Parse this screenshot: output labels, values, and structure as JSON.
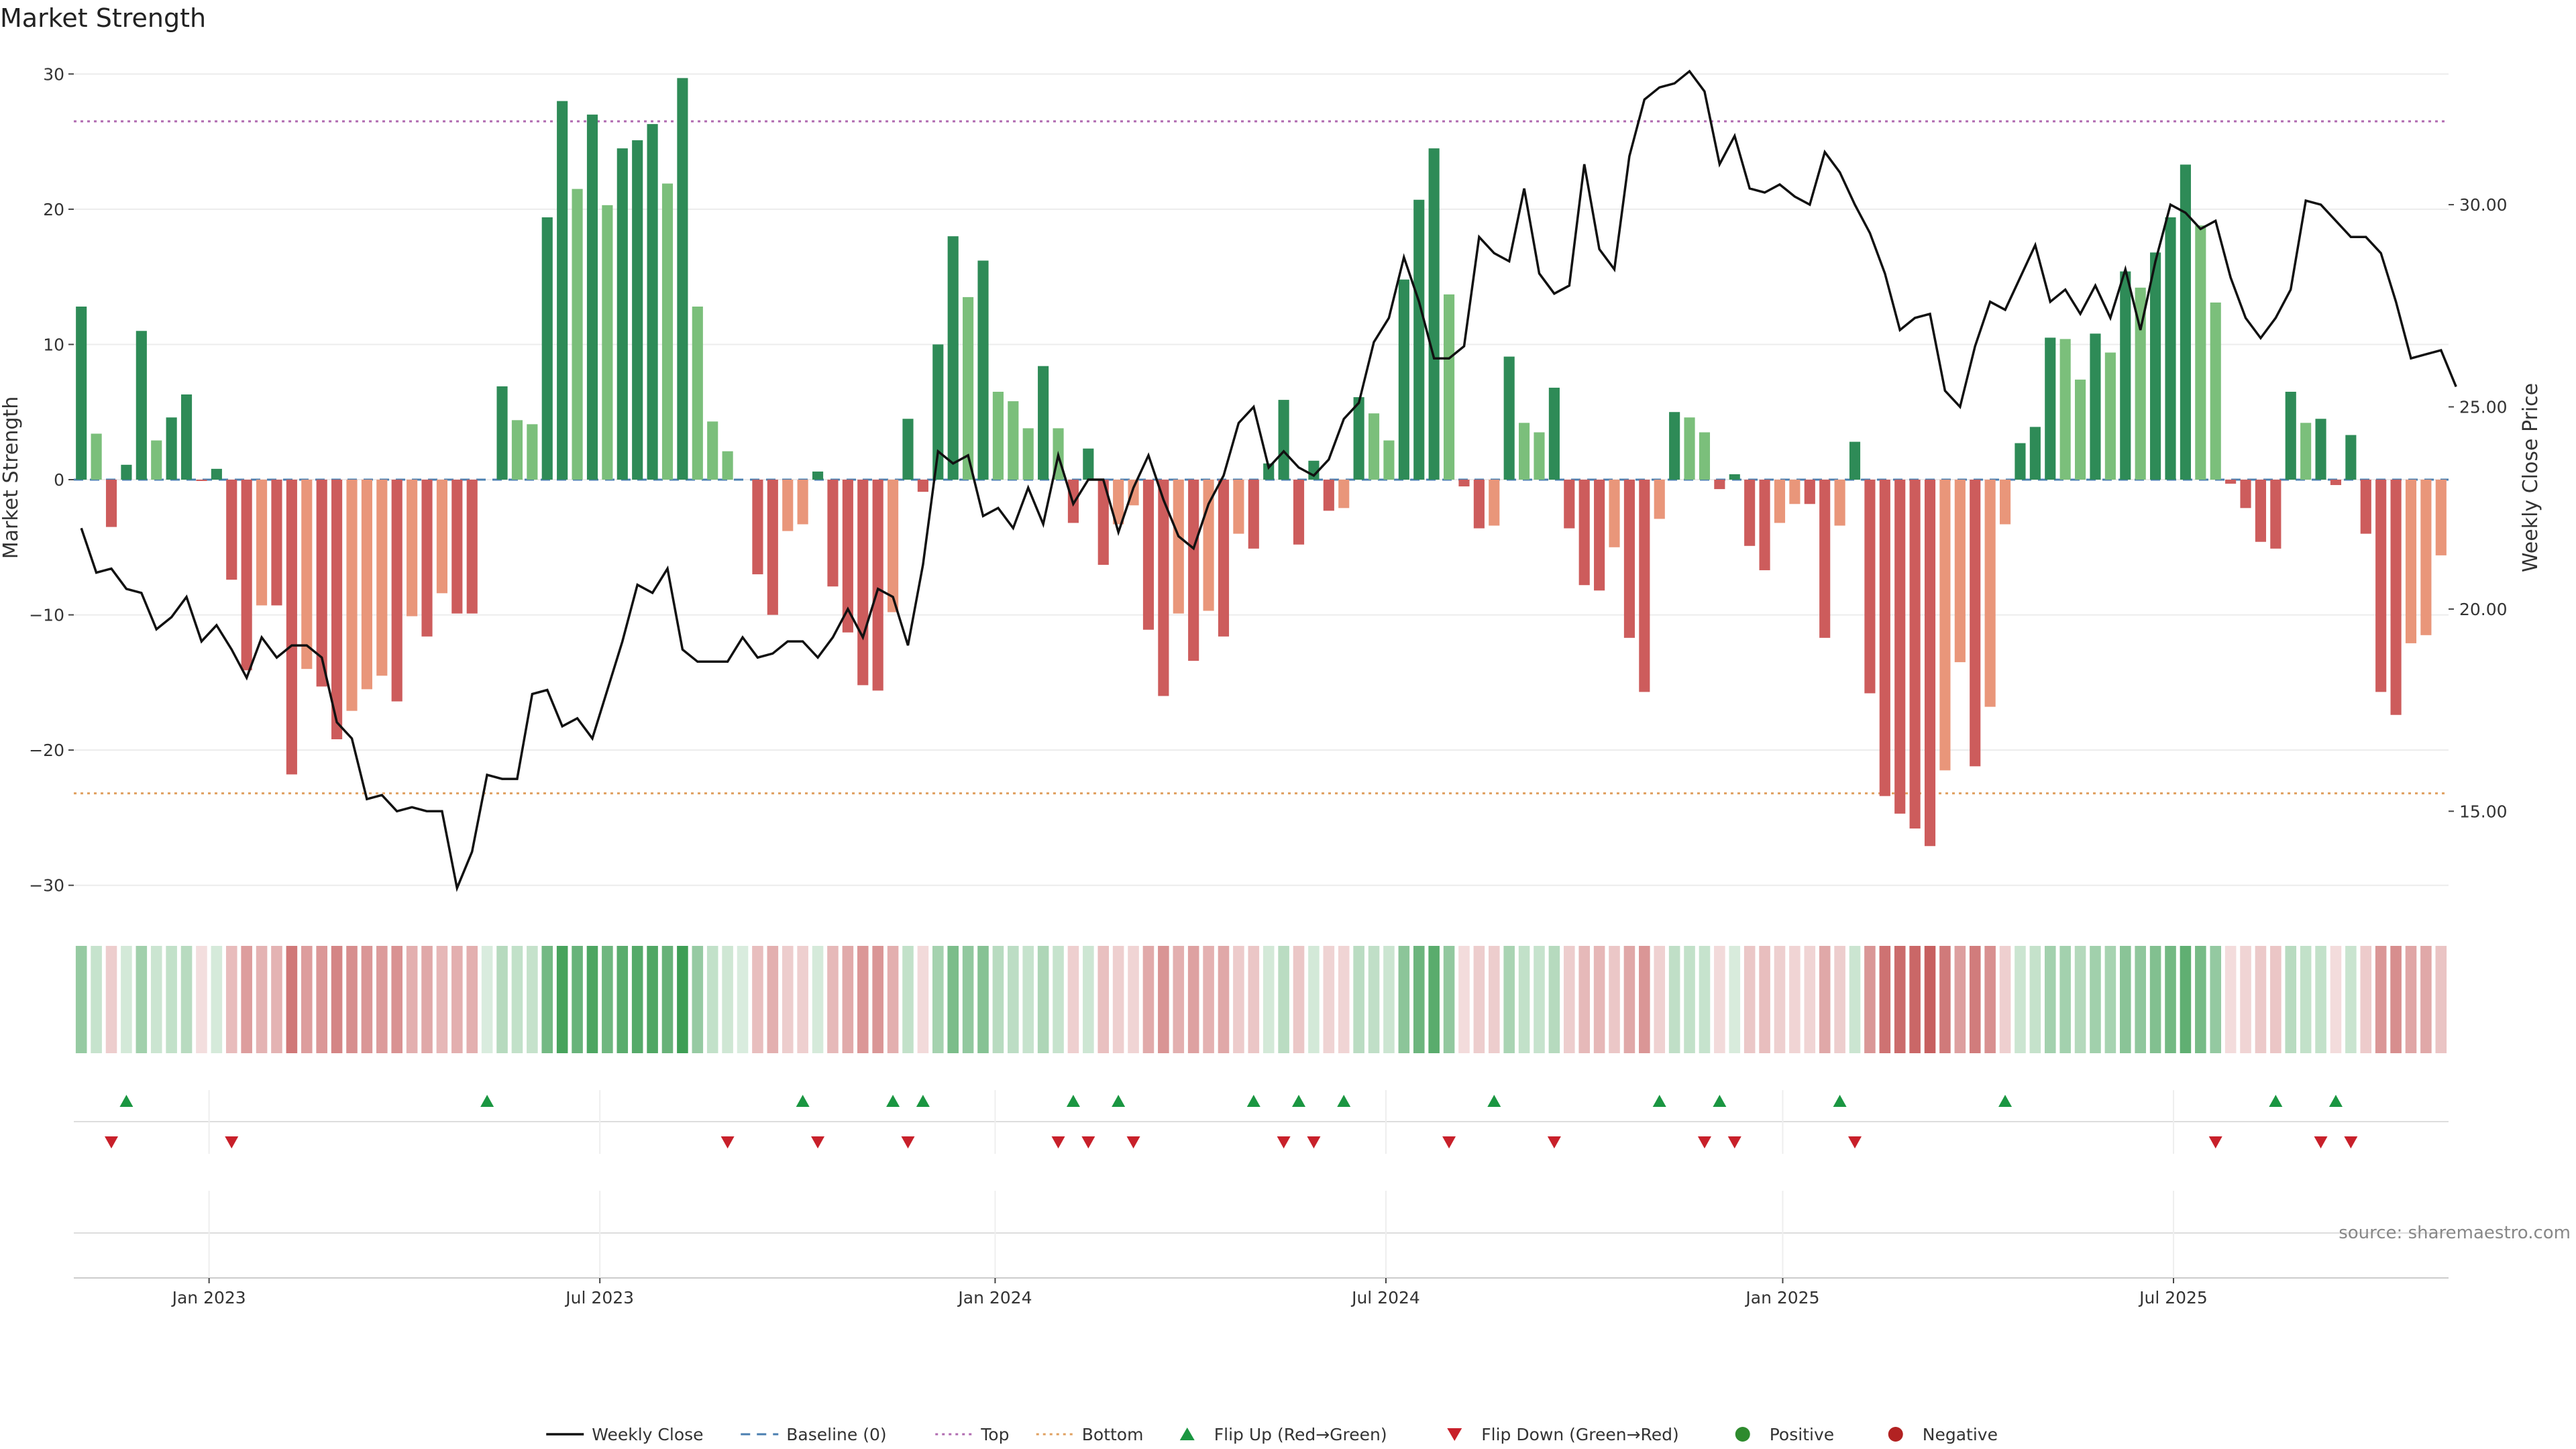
{
  "chart_data": {
    "type": "bar",
    "title": "Market Strength",
    "ylabel_left": "Market Strength",
    "ylabel_right": "Weekly Close Price",
    "source": "source: sharemaestro.com",
    "left_ylim": [
      -32,
      32
    ],
    "left_ticks": [
      "30",
      "20",
      "10",
      "0",
      "−10",
      "−20",
      "−30"
    ],
    "left_tick_values": [
      30,
      20,
      10,
      0,
      -10,
      -20,
      -30
    ],
    "right_ylim": [
      12.5,
      33.9
    ],
    "right_ticks": [
      "30.00",
      "25.00",
      "20.00",
      "15.00"
    ],
    "right_tick_values": [
      30,
      25,
      20,
      15
    ],
    "top_line": 26.5,
    "bottom_line": -23.2,
    "x_ticks": [
      "Jan 2023",
      "Jul 2023",
      "Jan 2024",
      "Jul 2024",
      "Jan 2025",
      "Jul 2025"
    ],
    "x_tick_index": [
      8.5,
      34.5,
      60.8,
      86.8,
      113.2,
      139.2
    ],
    "grid": "horizontal",
    "legend_position": "bottom-center",
    "colors": {
      "strong_green": "#2e8b57",
      "light_green": "#7bbf7b",
      "strong_red": "#cd5c5c",
      "light_red": "#e9967a",
      "price_line": "#111111",
      "baseline": "#4a7fb0",
      "top_line": "#b06ab0",
      "bottom_line": "#e0a060",
      "flip_up": "#1a9641",
      "flip_down": "#c8202a"
    },
    "legend": [
      {
        "label": "Weekly Close",
        "kind": "line",
        "color": "#111111"
      },
      {
        "label": "Baseline (0)",
        "kind": "dash",
        "color": "#4a7fb0"
      },
      {
        "label": "Top",
        "kind": "dot",
        "color": "#b06ab0"
      },
      {
        "label": "Bottom",
        "kind": "dot",
        "color": "#e0a060"
      },
      {
        "label": "Flip Up (Red→Green)",
        "kind": "tri-up",
        "color": "#1a9641"
      },
      {
        "label": "Flip Down (Green→Red)",
        "kind": "tri-down",
        "color": "#c8202a"
      },
      {
        "label": "Positive",
        "kind": "circle",
        "color": "#2e8b2e"
      },
      {
        "label": "Negative",
        "kind": "circle",
        "color": "#b22222"
      }
    ],
    "bars": [
      12.8,
      3.4,
      -3.5,
      1.1,
      11.0,
      2.9,
      4.6,
      6.3,
      -0.1,
      0.8,
      -7.4,
      -14.1,
      -9.3,
      -9.3,
      -21.8,
      -14.0,
      -15.3,
      -19.2,
      -17.1,
      -15.5,
      -14.5,
      -16.4,
      -10.1,
      -11.6,
      -8.4,
      -9.9,
      -9.9,
      0,
      6.9,
      4.4,
      4.1,
      19.4,
      28.0,
      21.5,
      27.0,
      20.3,
      24.5,
      25.1,
      26.3,
      21.9,
      29.7,
      12.8,
      4.3,
      2.1,
      0,
      -7.0,
      -10.0,
      -3.8,
      -3.3,
      0.6,
      -7.9,
      -11.3,
      -15.2,
      -15.6,
      -9.8,
      4.5,
      -0.9,
      10.0,
      18.0,
      13.5,
      16.2,
      6.5,
      5.8,
      3.8,
      8.4,
      3.8,
      -3.2,
      2.3,
      -6.3,
      -3.3,
      -1.9,
      -11.1,
      -16.0,
      -9.9,
      -13.4,
      -9.7,
      -11.6,
      -4.0,
      -5.1,
      1.2,
      5.9,
      -4.8,
      1.4,
      -2.3,
      -2.1,
      6.1,
      4.9,
      2.9,
      14.8,
      20.7,
      24.5,
      13.7,
      -0.5,
      -3.6,
      -3.4,
      9.1,
      4.2,
      3.5,
      6.8,
      -3.6,
      -7.8,
      -8.2,
      -5.0,
      -11.7,
      -15.7,
      -2.9,
      5.0,
      4.6,
      3.5,
      -0.7,
      0.4,
      -4.9,
      -6.7,
      -3.2,
      -1.8,
      -1.8,
      -11.7,
      -3.4,
      2.8,
      -15.8,
      -23.4,
      -24.7,
      -25.8,
      -27.1,
      -21.5,
      -13.5,
      -21.2,
      -16.8,
      -3.3,
      2.7,
      3.9,
      10.5,
      10.4,
      7.4,
      10.8,
      9.4,
      15.4,
      14.2,
      16.8,
      19.4,
      23.3,
      18.8,
      13.1,
      -0.3,
      -2.1,
      -4.6,
      -5.1,
      6.5,
      4.2,
      4.5,
      -0.4,
      3.3,
      -4.0,
      -15.7,
      -17.4,
      -12.1,
      -11.5,
      -5.6
    ],
    "price": [
      22.0,
      20.9,
      21.0,
      20.5,
      20.4,
      19.5,
      19.8,
      20.3,
      19.2,
      19.6,
      19.0,
      18.3,
      19.3,
      18.8,
      19.1,
      19.1,
      18.8,
      17.2,
      16.8,
      15.3,
      15.4,
      15.0,
      15.1,
      15.0,
      15.0,
      13.1,
      14.0,
      15.9,
      15.8,
      15.8,
      17.9,
      18.0,
      17.1,
      17.3,
      16.8,
      18.0,
      19.2,
      20.6,
      20.4,
      21.0,
      19.0,
      18.7,
      18.7,
      18.7,
      19.3,
      18.8,
      18.9,
      19.2,
      19.2,
      18.8,
      19.3,
      20.0,
      19.3,
      20.5,
      20.3,
      19.1,
      21.1,
      23.9,
      23.6,
      23.8,
      22.3,
      22.5,
      22.0,
      23.0,
      22.1,
      23.8,
      22.6,
      23.2,
      23.2,
      21.9,
      23.0,
      23.8,
      22.7,
      21.8,
      21.5,
      22.6,
      23.3,
      24.6,
      25.0,
      23.5,
      23.9,
      23.5,
      23.3,
      23.7,
      24.7,
      25.1,
      26.6,
      27.2,
      28.7,
      27.6,
      26.2,
      26.2,
      26.5,
      29.2,
      28.8,
      28.6,
      30.4,
      28.3,
      27.8,
      28.0,
      31.0,
      28.9,
      28.4,
      31.2,
      32.6,
      32.9,
      33.0,
      33.3,
      32.8,
      31.0,
      31.7,
      30.4,
      30.3,
      30.5,
      30.2,
      30.0,
      31.3,
      30.8,
      30.0,
      29.3,
      28.3,
      26.9,
      27.2,
      27.3,
      25.4,
      25.0,
      26.5,
      27.6,
      27.4,
      28.2,
      29.0,
      27.6,
      27.9,
      27.3,
      28.0,
      27.2,
      28.4,
      26.9,
      28.6,
      30.0,
      29.8,
      29.4,
      29.6,
      28.2,
      27.2,
      26.7,
      27.2,
      27.9,
      30.1,
      30.0,
      29.6,
      29.2,
      29.2,
      28.8,
      27.6,
      26.2,
      26.3,
      26.4,
      25.5
    ],
    "flip_up_index": [
      3,
      27,
      48,
      54,
      56,
      66,
      69,
      78,
      81,
      84,
      94,
      105,
      109,
      117,
      128,
      146,
      150
    ],
    "flip_down_index": [
      2,
      10,
      43,
      49,
      55,
      65,
      67,
      70,
      80,
      82,
      91,
      98,
      108,
      110,
      118,
      142,
      149,
      151
    ]
  }
}
